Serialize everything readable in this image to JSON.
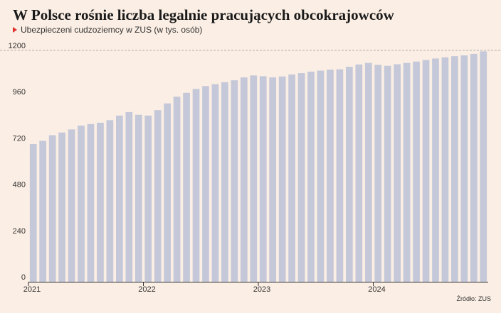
{
  "header": {
    "title": "W Polsce rośnie liczba legalnie pracujących obcokrajowców",
    "subtitle": "Ubezpieczeni cudzoziemcy w ZUS (w tys. osób)"
  },
  "footer": {
    "source": "Źródło: ZUS"
  },
  "colors": {
    "bar": "#c4c8d8",
    "accent": "#e0312e",
    "background": "#fbeee4",
    "axis": "#333333"
  },
  "chart_data": {
    "type": "bar",
    "title": "W Polsce rośnie liczba legalnie pracujących obcokrajowców",
    "subtitle": "Ubezpieczeni cudzoziemcy w ZUS (w tys. osób)",
    "start": "2021-01",
    "frequency": "monthly",
    "x_tick_labels": [
      "2021",
      "2022",
      "2023",
      "2024"
    ],
    "ylim": [
      0,
      1200
    ],
    "yticks": [
      0,
      240,
      480,
      720,
      960,
      1200
    ],
    "grid": "dashed horizontal at 1200",
    "values": [
      714,
      731,
      760,
      774,
      790,
      810,
      818,
      825,
      838,
      862,
      880,
      866,
      862,
      890,
      925,
      960,
      980,
      1000,
      1015,
      1025,
      1035,
      1045,
      1060,
      1070,
      1066,
      1060,
      1065,
      1075,
      1082,
      1090,
      1095,
      1100,
      1102,
      1115,
      1127,
      1135,
      1125,
      1120,
      1128,
      1135,
      1142,
      1150,
      1158,
      1164,
      1170,
      1174,
      1182,
      1195
    ]
  }
}
